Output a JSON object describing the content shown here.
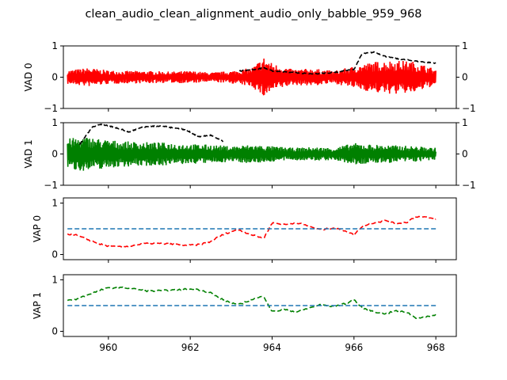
{
  "title": "clean_audio_clean_alignment_audio_only_babble_959_968",
  "chart_data": [
    {
      "type": "line",
      "ylabel": "VAD 0",
      "xlim": [
        958.9,
        968.5
      ],
      "ylim": [
        -1,
        1
      ],
      "yticks": [
        -1,
        0,
        1
      ],
      "right_axis_ticks": [
        -1,
        0,
        1
      ],
      "series": [
        {
          "role": "waveform",
          "color": "#ff0000",
          "x": [
            959.0,
            959.5,
            960.0,
            960.5,
            961.0,
            961.5,
            962.0,
            962.5,
            963.0,
            963.5,
            963.8,
            964.0,
            964.5,
            965.0,
            965.5,
            966.0,
            966.5,
            967.0,
            967.5,
            968.0
          ],
          "amplitude": [
            0.22,
            0.3,
            0.22,
            0.2,
            0.2,
            0.18,
            0.2,
            0.15,
            0.2,
            0.3,
            0.65,
            0.45,
            0.25,
            0.28,
            0.2,
            0.35,
            0.5,
            0.55,
            0.5,
            0.25
          ]
        },
        {
          "role": "envelope",
          "color": "#000000",
          "style": "dashed",
          "x": [
            963.2,
            963.6,
            963.8,
            964.0,
            964.5,
            965.0,
            965.5,
            966.0,
            966.2,
            966.5,
            966.8,
            967.0,
            967.3,
            967.6,
            968.0
          ],
          "y": [
            0.2,
            0.25,
            0.3,
            0.2,
            0.15,
            0.1,
            0.15,
            0.25,
            0.75,
            0.8,
            0.65,
            0.6,
            0.55,
            0.5,
            0.45
          ]
        }
      ]
    },
    {
      "type": "line",
      "ylabel": "VAD 1",
      "xlim": [
        958.9,
        968.5
      ],
      "ylim": [
        -1,
        1
      ],
      "yticks": [
        -1,
        0,
        1
      ],
      "right_axis_ticks": [
        -1,
        0,
        1
      ],
      "series": [
        {
          "role": "waveform",
          "color": "#008000",
          "x": [
            959.0,
            959.5,
            960.0,
            960.5,
            961.0,
            961.5,
            962.0,
            962.5,
            963.0,
            963.5,
            964.0,
            964.5,
            965.0,
            965.5,
            966.0,
            966.5,
            967.0,
            967.5,
            968.0
          ],
          "amplitude": [
            0.5,
            0.55,
            0.45,
            0.4,
            0.38,
            0.36,
            0.32,
            0.3,
            0.25,
            0.3,
            0.25,
            0.2,
            0.22,
            0.2,
            0.35,
            0.3,
            0.28,
            0.25,
            0.2
          ]
        },
        {
          "role": "envelope",
          "color": "#000000",
          "style": "dashed",
          "x": [
            959.3,
            959.6,
            959.8,
            960.0,
            960.3,
            960.5,
            960.8,
            961.0,
            961.3,
            961.5,
            961.8,
            962.0,
            962.2,
            962.5,
            962.8
          ],
          "y": [
            0.3,
            0.85,
            0.95,
            0.9,
            0.8,
            0.7,
            0.85,
            0.88,
            0.9,
            0.85,
            0.8,
            0.7,
            0.55,
            0.6,
            0.4
          ]
        }
      ]
    },
    {
      "type": "line",
      "ylabel": "VAP 0",
      "xlim": [
        958.9,
        968.5
      ],
      "ylim": [
        -0.1,
        1.1
      ],
      "yticks": [
        0,
        1
      ],
      "series": [
        {
          "role": "probability",
          "color": "#ff0000",
          "style": "dashed",
          "x": [
            959.0,
            959.2,
            959.4,
            959.6,
            959.8,
            960.0,
            960.2,
            960.5,
            960.8,
            961.0,
            961.3,
            961.6,
            961.9,
            962.2,
            962.5,
            962.7,
            963.0,
            963.2,
            963.5,
            963.8,
            964.0,
            964.3,
            964.6,
            964.9,
            965.2,
            965.5,
            965.8,
            966.0,
            966.2,
            966.5,
            966.8,
            967.0,
            967.3,
            967.5,
            967.8,
            968.0
          ],
          "y": [
            0.4,
            0.38,
            0.32,
            0.26,
            0.2,
            0.16,
            0.15,
            0.16,
            0.2,
            0.22,
            0.21,
            0.2,
            0.18,
            0.19,
            0.25,
            0.35,
            0.45,
            0.48,
            0.38,
            0.32,
            0.62,
            0.58,
            0.62,
            0.55,
            0.48,
            0.52,
            0.46,
            0.38,
            0.55,
            0.62,
            0.66,
            0.6,
            0.63,
            0.74,
            0.72,
            0.68
          ]
        },
        {
          "role": "threshold",
          "color": "#1f77b4",
          "style": "dashed",
          "x": [
            959.0,
            968.0
          ],
          "y": [
            0.5,
            0.5
          ]
        }
      ]
    },
    {
      "type": "line",
      "ylabel": "VAP 1",
      "xlim": [
        958.9,
        968.5
      ],
      "ylim": [
        -0.1,
        1.1
      ],
      "yticks": [
        0,
        1
      ],
      "xticks": [
        960,
        962,
        964,
        966,
        968
      ],
      "series": [
        {
          "role": "probability",
          "color": "#008000",
          "style": "dashed",
          "x": [
            959.0,
            959.2,
            959.4,
            959.6,
            959.8,
            960.0,
            960.2,
            960.5,
            960.8,
            961.0,
            961.3,
            961.6,
            961.9,
            962.2,
            962.5,
            962.7,
            963.0,
            963.2,
            963.5,
            963.8,
            964.0,
            964.3,
            964.6,
            964.9,
            965.2,
            965.5,
            965.8,
            966.0,
            966.2,
            966.5,
            966.8,
            967.0,
            967.3,
            967.5,
            967.8,
            968.0
          ],
          "y": [
            0.6,
            0.62,
            0.68,
            0.74,
            0.8,
            0.84,
            0.85,
            0.84,
            0.8,
            0.78,
            0.79,
            0.8,
            0.82,
            0.81,
            0.75,
            0.65,
            0.55,
            0.52,
            0.62,
            0.68,
            0.38,
            0.42,
            0.38,
            0.45,
            0.52,
            0.48,
            0.54,
            0.62,
            0.45,
            0.38,
            0.34,
            0.4,
            0.37,
            0.26,
            0.28,
            0.32
          ]
        },
        {
          "role": "threshold",
          "color": "#1f77b4",
          "style": "dashed",
          "x": [
            959.0,
            968.0
          ],
          "y": [
            0.5,
            0.5
          ]
        }
      ]
    }
  ]
}
